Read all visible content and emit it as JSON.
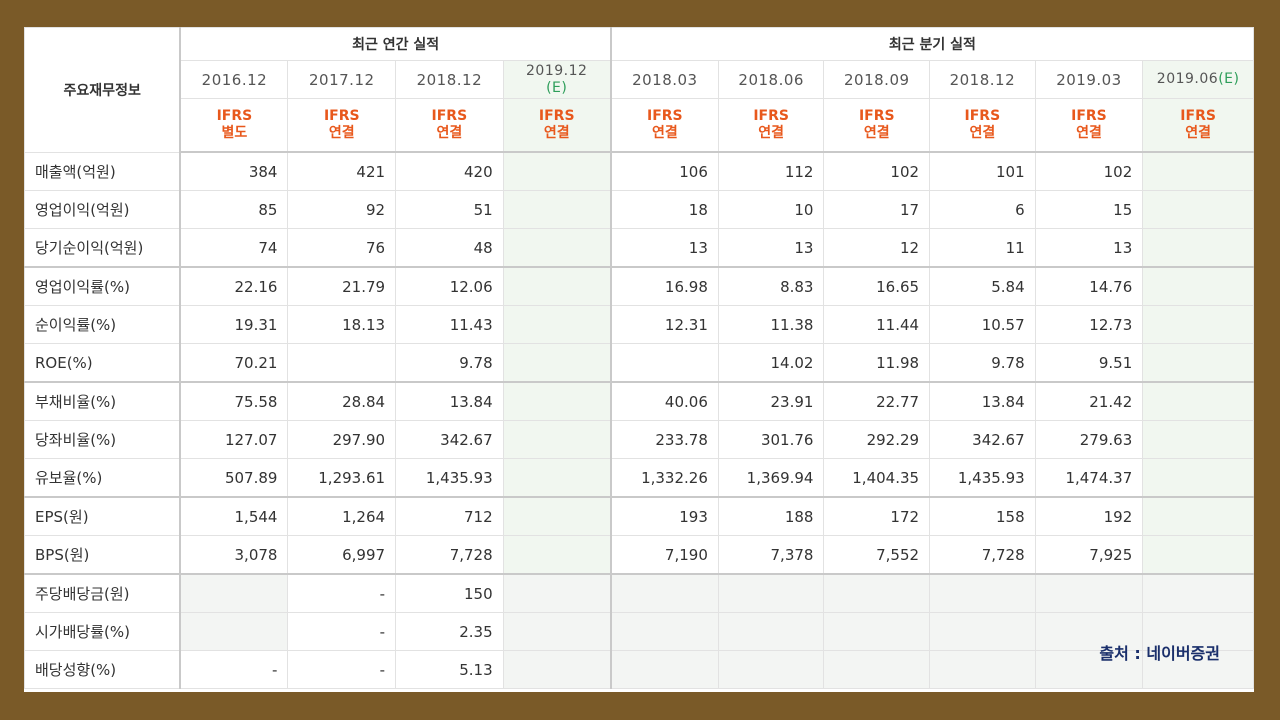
{
  "header": {
    "row_label": "주요재무정보",
    "annual_group": "최근 연간 실적",
    "quarter_group": "최근 분기 실적",
    "periods": [
      {
        "date": "2016.12",
        "est": "",
        "ifrs": "IFRS",
        "basis": "별도"
      },
      {
        "date": "2017.12",
        "est": "",
        "ifrs": "IFRS",
        "basis": "연결"
      },
      {
        "date": "2018.12",
        "est": "",
        "ifrs": "IFRS",
        "basis": "연결"
      },
      {
        "date": "2019.12",
        "est": "(E)",
        "ifrs": "IFRS",
        "basis": "연결"
      },
      {
        "date": "2018.03",
        "est": "",
        "ifrs": "IFRS",
        "basis": "연결"
      },
      {
        "date": "2018.06",
        "est": "",
        "ifrs": "IFRS",
        "basis": "연결"
      },
      {
        "date": "2018.09",
        "est": "",
        "ifrs": "IFRS",
        "basis": "연결"
      },
      {
        "date": "2018.12",
        "est": "",
        "ifrs": "IFRS",
        "basis": "연결"
      },
      {
        "date": "2019.03",
        "est": "",
        "ifrs": "IFRS",
        "basis": "연결"
      },
      {
        "date": "2019.06",
        "est": "(E)",
        "ifrs": "IFRS",
        "basis": "연결"
      }
    ]
  },
  "rows": [
    {
      "label": "매출액(억원)",
      "values": [
        "384",
        "421",
        "420",
        "",
        "106",
        "112",
        "102",
        "101",
        "102",
        ""
      ]
    },
    {
      "label": "영업이익(억원)",
      "values": [
        "85",
        "92",
        "51",
        "",
        "18",
        "10",
        "17",
        "6",
        "15",
        ""
      ]
    },
    {
      "label": "당기순이익(억원)",
      "values": [
        "74",
        "76",
        "48",
        "",
        "13",
        "13",
        "12",
        "11",
        "13",
        ""
      ]
    },
    {
      "label": "영업이익률(%)",
      "values": [
        "22.16",
        "21.79",
        "12.06",
        "",
        "16.98",
        "8.83",
        "16.65",
        "5.84",
        "14.76",
        ""
      ]
    },
    {
      "label": "순이익률(%)",
      "values": [
        "19.31",
        "18.13",
        "11.43",
        "",
        "12.31",
        "11.38",
        "11.44",
        "10.57",
        "12.73",
        ""
      ]
    },
    {
      "label": "ROE(%)",
      "values": [
        "70.21",
        "",
        "9.78",
        "",
        "",
        "14.02",
        "11.98",
        "9.78",
        "9.51",
        ""
      ]
    },
    {
      "label": "부채비율(%)",
      "values": [
        "75.58",
        "28.84",
        "13.84",
        "",
        "40.06",
        "23.91",
        "22.77",
        "13.84",
        "21.42",
        ""
      ]
    },
    {
      "label": "당좌비율(%)",
      "values": [
        "127.07",
        "297.90",
        "342.67",
        "",
        "233.78",
        "301.76",
        "292.29",
        "342.67",
        "279.63",
        ""
      ]
    },
    {
      "label": "유보율(%)",
      "values": [
        "507.89",
        "1,293.61",
        "1,435.93",
        "",
        "1,332.26",
        "1,369.94",
        "1,404.35",
        "1,435.93",
        "1,474.37",
        ""
      ]
    },
    {
      "label": "EPS(원)",
      "values": [
        "1,544",
        "1,264",
        "712",
        "",
        "193",
        "188",
        "172",
        "158",
        "192",
        ""
      ]
    },
    {
      "label": "BPS(원)",
      "values": [
        "3,078",
        "6,997",
        "7,728",
        "",
        "7,190",
        "7,378",
        "7,552",
        "7,728",
        "7,925",
        ""
      ]
    },
    {
      "label": "주당배당금(원)",
      "values": [
        "",
        "-",
        "150",
        "",
        "",
        "",
        "",
        "",
        "",
        ""
      ]
    },
    {
      "label": "시가배당률(%)",
      "values": [
        "",
        "-",
        "2.35",
        "",
        "",
        "",
        "",
        "",
        "",
        ""
      ]
    },
    {
      "label": "배당성향(%)",
      "values": [
        "-",
        "-",
        "5.13",
        "",
        "",
        "",
        "",
        "",
        "",
        ""
      ]
    }
  ],
  "source": "출처 : 네이버증권"
}
